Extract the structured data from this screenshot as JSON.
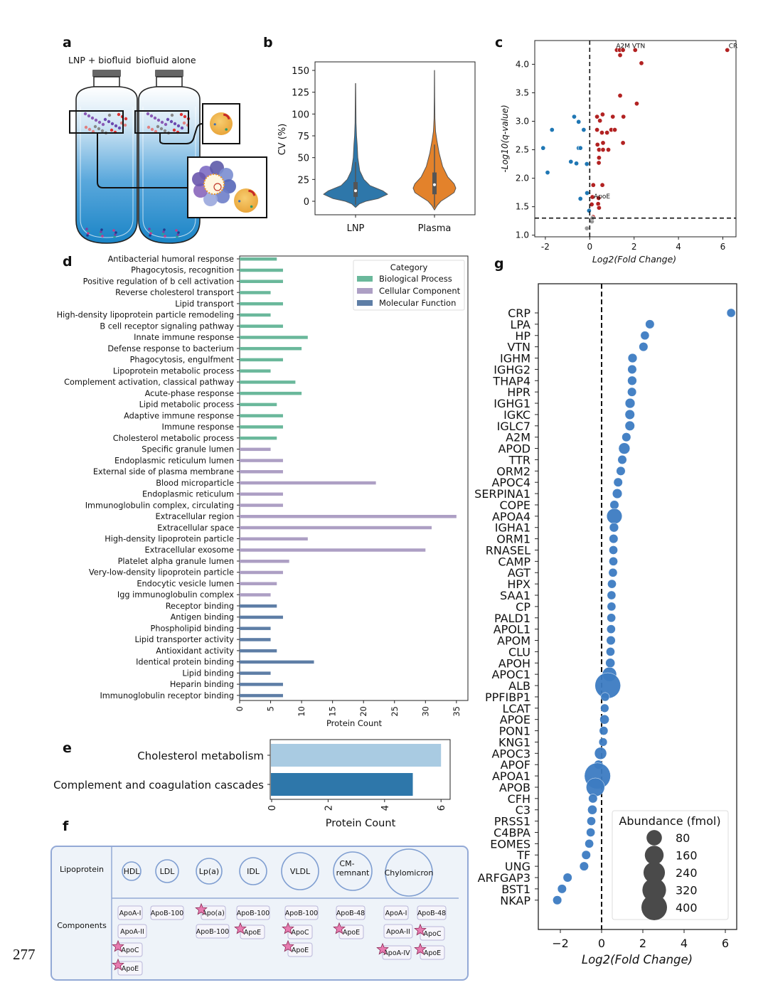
{
  "page_number": "277",
  "panel_letters": {
    "a": "a",
    "b": "b",
    "c": "c",
    "d": "d",
    "e": "e",
    "f": "f",
    "g": "g"
  },
  "panel_a": {
    "label_left": "LNP + biofluid",
    "label_right": "biofluid alone",
    "colors": {
      "fluid_top": "#ffffff",
      "fluid_bottom": "#1a84c6",
      "nanoparticle": "#f2b84b"
    }
  },
  "chart_data": [
    {
      "id": "b",
      "type": "violin",
      "title": "",
      "xlabel": "",
      "ylabel": "CV (%)",
      "ylim": [
        -15,
        160
      ],
      "yticks": [
        0,
        25,
        50,
        75,
        100,
        125,
        150
      ],
      "categories": [
        "LNP",
        "Plasma"
      ],
      "colors": [
        "#2e77aa",
        "#e3822b"
      ],
      "series": [
        {
          "name": "LNP",
          "median": 12,
          "q1": 5,
          "q3": 22,
          "whisker_high": 45,
          "min": -7,
          "max": 135,
          "density": [
            [
              -7,
              0
            ],
            [
              -3,
              0.12
            ],
            [
              0,
              0.32
            ],
            [
              3,
              0.7
            ],
            [
              8,
              1.0
            ],
            [
              12,
              0.85
            ],
            [
              18,
              0.45
            ],
            [
              25,
              0.26
            ],
            [
              35,
              0.13
            ],
            [
              50,
              0.07
            ],
            [
              65,
              0.05
            ],
            [
              75,
              0.03
            ],
            [
              90,
              0.015
            ],
            [
              110,
              0.01
            ],
            [
              135,
              0.004
            ]
          ]
        },
        {
          "name": "Plasma",
          "median": 19,
          "q1": 8,
          "q3": 33,
          "whisker_high": 65,
          "min": -10,
          "max": 150,
          "density": [
            [
              -10,
              0
            ],
            [
              -5,
              0.12
            ],
            [
              0,
              0.3
            ],
            [
              5,
              0.62
            ],
            [
              10,
              0.92
            ],
            [
              15,
              1.0
            ],
            [
              20,
              0.92
            ],
            [
              28,
              0.62
            ],
            [
              40,
              0.38
            ],
            [
              55,
              0.22
            ],
            [
              70,
              0.11
            ],
            [
              80,
              0.05
            ],
            [
              95,
              0.02
            ],
            [
              120,
              0.01
            ],
            [
              150,
              0.004
            ]
          ]
        }
      ]
    },
    {
      "id": "c",
      "type": "scatter",
      "xlabel": "Log2(Fold Change)",
      "ylabel": "-Log10(q-value)",
      "xlim": [
        -2.5,
        6.6
      ],
      "ylim": [
        0.97,
        4.45
      ],
      "xticks": [
        -2,
        0,
        2,
        4,
        6
      ],
      "yticks": [
        1.0,
        1.5,
        2.0,
        2.5,
        3.0,
        3.5,
        4.0
      ],
      "threshold_y": 1.3,
      "threshold_x": 0,
      "colors": {
        "up": "#b22222",
        "down": "#1f77b4",
        "ns": "#999999"
      },
      "series": [
        {
          "name": "up",
          "points": [
            [
              1.22,
              4.25
            ],
            [
              1.35,
              4.25
            ],
            [
              1.5,
              4.25
            ],
            [
              2.05,
              4.25
            ],
            [
              1.37,
              4.16
            ],
            [
              2.33,
              4.02
            ],
            [
              6.2,
              4.25
            ],
            [
              1.37,
              3.45
            ],
            [
              2.12,
              3.31
            ],
            [
              0.33,
              3.08
            ],
            [
              0.58,
              3.12
            ],
            [
              0.46,
              3.01
            ],
            [
              1.04,
              3.08
            ],
            [
              1.52,
              3.08
            ],
            [
              0.33,
              2.85
            ],
            [
              0.55,
              2.8
            ],
            [
              0.78,
              2.8
            ],
            [
              0.97,
              2.85
            ],
            [
              1.13,
              2.85
            ],
            [
              0.35,
              2.59
            ],
            [
              0.6,
              2.62
            ],
            [
              1.5,
              2.62
            ],
            [
              0.42,
              2.5
            ],
            [
              0.6,
              2.5
            ],
            [
              0.84,
              2.5
            ],
            [
              0.42,
              2.36
            ],
            [
              0.41,
              2.27
            ],
            [
              0.16,
              1.88
            ],
            [
              0.57,
              1.88
            ],
            [
              0.12,
              1.67
            ],
            [
              0.4,
              1.65
            ],
            [
              0.09,
              1.54
            ],
            [
              0.38,
              1.55
            ],
            [
              0.42,
              1.48
            ],
            [
              0.15,
              1.32
            ]
          ]
        },
        {
          "name": "down",
          "points": [
            [
              -0.7,
              3.08
            ],
            [
              -0.5,
              2.99
            ],
            [
              -1.7,
              2.85
            ],
            [
              -0.27,
              2.85
            ],
            [
              -2.1,
              2.53
            ],
            [
              -0.5,
              2.53
            ],
            [
              -0.42,
              2.53
            ],
            [
              -0.85,
              2.29
            ],
            [
              -0.6,
              2.26
            ],
            [
              -0.13,
              2.25
            ],
            [
              -1.9,
              2.1
            ],
            [
              -0.12,
              1.74
            ],
            [
              -0.42,
              1.64
            ],
            [
              -0.03,
              1.43
            ]
          ]
        },
        {
          "name": "ns",
          "points": [
            [
              -0.13,
              1.12
            ],
            [
              0.1,
              1.24
            ],
            [
              0.12,
              1.3
            ]
          ]
        }
      ],
      "annotations": [
        {
          "text": "A2M VTN",
          "x": 1.22,
          "y": 4.25
        },
        {
          "text": "CR",
          "x": 6.2,
          "y": 4.25
        },
        {
          "text": "ApoE",
          "x": 0.12,
          "y": 1.67
        }
      ]
    },
    {
      "id": "d",
      "type": "bar",
      "orientation": "horizontal",
      "xlabel": "Protein Count",
      "xlim": [
        0,
        37
      ],
      "xticks": [
        0,
        5,
        10,
        15,
        20,
        25,
        30,
        35
      ],
      "legend": {
        "title": "Category",
        "position": "top-right"
      },
      "groups": [
        {
          "name": "Biological Process",
          "color": "#6ab89b",
          "items": [
            [
              "Antibacterial humoral response",
              6
            ],
            [
              "Phagocytosis, recognition",
              7
            ],
            [
              "Positive regulation of b cell activation",
              7
            ],
            [
              "Reverse cholesterol transport",
              5
            ],
            [
              "Lipid transport",
              7
            ],
            [
              "High-density lipoprotein particle remodeling",
              5
            ],
            [
              "B cell receptor signaling pathway",
              7
            ],
            [
              "Innate immune response",
              11
            ],
            [
              "Defense response to bacterium",
              10
            ],
            [
              "Phagocytosis, engulfment",
              7
            ],
            [
              "Lipoprotein metabolic process",
              5
            ],
            [
              "Complement activation, classical pathway",
              9
            ],
            [
              "Acute-phase response",
              10
            ],
            [
              "Lipid metabolic process",
              6
            ],
            [
              "Adaptive immune response",
              7
            ],
            [
              "Immune response",
              7
            ],
            [
              "Cholesterol metabolic process",
              6
            ]
          ]
        },
        {
          "name": "Cellular Component",
          "color": "#ad9fc4",
          "items": [
            [
              "Specific granule lumen",
              5
            ],
            [
              "Endoplasmic reticulum lumen",
              7
            ],
            [
              "External side of plasma membrane",
              7
            ],
            [
              "Blood microparticle",
              22
            ],
            [
              "Endoplasmic reticulum",
              7
            ],
            [
              "Immunoglobulin complex, circulating",
              7
            ],
            [
              "Extracellular region",
              35
            ],
            [
              "Extracellular space",
              31
            ],
            [
              "High-density lipoprotein particle",
              11
            ],
            [
              "Extracellular exosome",
              30
            ],
            [
              "Platelet alpha granule lumen",
              8
            ],
            [
              "Very-low-density lipoprotein particle",
              7
            ],
            [
              "Endocytic vesicle lumen",
              6
            ],
            [
              "Igg immunoglobulin complex",
              5
            ]
          ]
        },
        {
          "name": "Molecular Function",
          "color": "#5e7ea6",
          "items": [
            [
              "Receptor binding",
              6
            ],
            [
              "Antigen binding",
              7
            ],
            [
              "Phospholipid binding",
              5
            ],
            [
              "Lipid transporter activity",
              5
            ],
            [
              "Antioxidant activity",
              6
            ],
            [
              "Identical protein binding",
              12
            ],
            [
              "Lipid binding",
              5
            ],
            [
              "Heparin binding",
              7
            ],
            [
              "Immunoglobulin receptor binding",
              7
            ]
          ]
        }
      ]
    },
    {
      "id": "e",
      "type": "bar",
      "orientation": "horizontal",
      "xlabel": "Protein Count",
      "xlim": [
        0,
        6.3
      ],
      "xticks": [
        0,
        2,
        4,
        6
      ],
      "categories": [
        "Cholesterol metabolism",
        "Complement and coagulation cascades"
      ],
      "values": [
        6,
        5
      ],
      "colors": [
        "#a9cbe2",
        "#2e77aa"
      ]
    },
    {
      "id": "g",
      "type": "scatter",
      "subtype": "bubble",
      "xlabel": "Log2(Fold Change)",
      "xlim": [
        -3.1,
        6.55
      ],
      "xticks": [
        -2,
        0,
        2,
        4,
        6
      ],
      "reference_x": 0,
      "color": "#3d7cc2",
      "legend": {
        "title": "Abundance (fmol)",
        "sizes": [
          80,
          160,
          240,
          320,
          400
        ],
        "position": "bottom-right",
        "color": "#4a4a4a"
      },
      "proteins": [
        [
          "CRP",
          6.28,
          3
        ],
        [
          "LPA",
          2.34,
          4
        ],
        [
          "HP",
          2.1,
          3
        ],
        [
          "VTN",
          2.03,
          4
        ],
        [
          "IGHM",
          1.5,
          5
        ],
        [
          "IGHG2",
          1.48,
          4
        ],
        [
          "THAP4",
          1.48,
          5
        ],
        [
          "HPR",
          1.47,
          4
        ],
        [
          "IGHG1",
          1.38,
          9
        ],
        [
          "IGKC",
          1.37,
          8
        ],
        [
          "IGLC7",
          1.37,
          8
        ],
        [
          "A2M",
          1.2,
          4
        ],
        [
          "APOD",
          1.1,
          21
        ],
        [
          "TTR",
          1.0,
          4
        ],
        [
          "ORM2",
          0.93,
          4
        ],
        [
          "APOC4",
          0.8,
          4
        ],
        [
          "SERPINA1",
          0.76,
          8
        ],
        [
          "COPE",
          0.62,
          4
        ],
        [
          "APOA4",
          0.62,
          80
        ],
        [
          "IGHA1",
          0.6,
          5
        ],
        [
          "ORM1",
          0.58,
          4
        ],
        [
          "RNASEL",
          0.57,
          3
        ],
        [
          "CAMP",
          0.57,
          3
        ],
        [
          "AGT",
          0.55,
          3
        ],
        [
          "HPX",
          0.5,
          3
        ],
        [
          "SAA1",
          0.48,
          3
        ],
        [
          "CP",
          0.48,
          3
        ],
        [
          "PALD1",
          0.47,
          3
        ],
        [
          "APOL1",
          0.46,
          3
        ],
        [
          "APOM",
          0.45,
          4
        ],
        [
          "CLU",
          0.43,
          3
        ],
        [
          "APOH",
          0.42,
          6
        ],
        [
          "APOC1",
          0.38,
          59
        ],
        [
          "ALB",
          0.3,
          400
        ],
        [
          "PPFIBP1",
          0.17,
          3
        ],
        [
          "LCAT",
          0.15,
          2
        ],
        [
          "APOE",
          0.14,
          6
        ],
        [
          "PON1",
          0.1,
          3
        ],
        [
          "KNG1",
          0.07,
          2
        ],
        [
          "APOC3",
          -0.05,
          29
        ],
        [
          "APOF",
          -0.15,
          4
        ],
        [
          "APOA1",
          -0.2,
          420
        ],
        [
          "APOB",
          -0.3,
          150
        ],
        [
          "CFH",
          -0.42,
          4
        ],
        [
          "C3",
          -0.45,
          6
        ],
        [
          "PRSS1",
          -0.5,
          3
        ],
        [
          "C4BPA",
          -0.53,
          3
        ],
        [
          "EOMES",
          -0.6,
          3
        ],
        [
          "TF",
          -0.75,
          4
        ],
        [
          "UNG",
          -0.85,
          4
        ],
        [
          "ARFGAP3",
          -1.65,
          4
        ],
        [
          "BST1",
          -1.92,
          4
        ],
        [
          "NKAP",
          -2.15,
          4
        ]
      ]
    }
  ],
  "panel_f": {
    "row_labels": [
      "Lipoprotein",
      "Components"
    ],
    "lipoproteins": [
      "HDL",
      "LDL",
      "Lp(a)",
      "IDL",
      "VLDL",
      "CM-\nremnant",
      "Chylomicron"
    ],
    "components": [
      [
        [
          "ApoA-I",
          false
        ],
        [
          "ApoA-II",
          false
        ],
        [
          "ApoC",
          true
        ],
        [
          "ApoE",
          true
        ]
      ],
      [
        [
          "ApoB-100",
          false
        ]
      ],
      [
        [
          "Apo(a)",
          true
        ],
        [
          "ApoB-100",
          false
        ]
      ],
      [
        [
          "ApoB-100",
          false
        ],
        [
          "ApoE",
          true
        ]
      ],
      [
        [
          "ApoB-100",
          false
        ],
        [
          "ApoC",
          true
        ],
        [
          "ApoE",
          true
        ]
      ],
      [
        [
          "ApoB-48",
          false
        ],
        [
          "ApoE",
          true
        ]
      ],
      [
        [
          "ApoA-I",
          false
        ],
        [
          "ApoA-II",
          false
        ],
        [
          "ApoA-IV",
          true
        ],
        [
          "ApoB-48",
          false
        ],
        [
          "ApoC",
          true
        ],
        [
          "ApoE",
          true
        ]
      ]
    ],
    "colors": {
      "panel_fill": "#eef3f9",
      "border": "#93a9d6",
      "star": "#e77bb0"
    }
  }
}
